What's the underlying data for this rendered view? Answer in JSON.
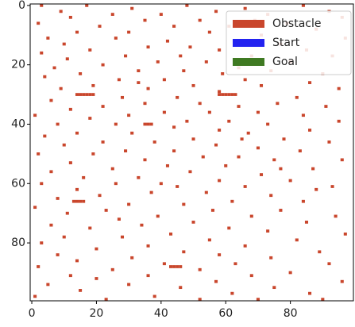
{
  "chart_data": {
    "type": "grid",
    "xlim": [
      -0.5,
      99.5
    ],
    "ylim": [
      99.5,
      -0.5
    ],
    "xticks": [
      0,
      20,
      40,
      60,
      80
    ],
    "yticks": [
      0,
      20,
      40,
      60,
      80
    ],
    "legend_loc": "upper right",
    "series": [
      {
        "name": "Obstacle",
        "color": "#c9462c"
      },
      {
        "name": "Start",
        "color": "#2323f0"
      },
      {
        "name": "Goal",
        "color": "#3f7a22"
      }
    ],
    "obstacles": [
      [
        3,
        0
      ],
      [
        17,
        0
      ],
      [
        31,
        1
      ],
      [
        48,
        0
      ],
      [
        66,
        1
      ],
      [
        84,
        0
      ],
      [
        92,
        2
      ],
      [
        9,
        2
      ],
      [
        25,
        3
      ],
      [
        40,
        3
      ],
      [
        57,
        2
      ],
      [
        73,
        3
      ],
      [
        12,
        4
      ],
      [
        35,
        5
      ],
      [
        52,
        5
      ],
      [
        69,
        5
      ],
      [
        96,
        4
      ],
      [
        2,
        6
      ],
      [
        21,
        7
      ],
      [
        44,
        7
      ],
      [
        61,
        7
      ],
      [
        79,
        6
      ],
      [
        88,
        8
      ],
      [
        14,
        9
      ],
      [
        30,
        9
      ],
      [
        55,
        9
      ],
      [
        71,
        10
      ],
      [
        5,
        11
      ],
      [
        26,
        11
      ],
      [
        42,
        12
      ],
      [
        63,
        12
      ],
      [
        97,
        11
      ],
      [
        10,
        13
      ],
      [
        36,
        14
      ],
      [
        49,
        14
      ],
      [
        77,
        13
      ],
      [
        18,
        15
      ],
      [
        58,
        15
      ],
      [
        85,
        15
      ],
      [
        3,
        16
      ],
      [
        29,
        17
      ],
      [
        46,
        17
      ],
      [
        68,
        17
      ],
      [
        93,
        17
      ],
      [
        11,
        18
      ],
      [
        39,
        19
      ],
      [
        54,
        19
      ],
      [
        80,
        19
      ],
      [
        22,
        20
      ],
      [
        64,
        21
      ],
      [
        7,
        21
      ],
      [
        33,
        22
      ],
      [
        47,
        22
      ],
      [
        74,
        22
      ],
      [
        15,
        23
      ],
      [
        59,
        23
      ],
      [
        90,
        23
      ],
      [
        4,
        24
      ],
      [
        27,
        25
      ],
      [
        41,
        25
      ],
      [
        66,
        25
      ],
      [
        86,
        26
      ],
      [
        19,
        27
      ],
      [
        50,
        27
      ],
      [
        71,
        27
      ],
      [
        9,
        28
      ],
      [
        36,
        28
      ],
      [
        58,
        29
      ],
      [
        95,
        28
      ],
      [
        14,
        30
      ],
      [
        15,
        30
      ],
      [
        16,
        30
      ],
      [
        17,
        30
      ],
      [
        18,
        30
      ],
      [
        19,
        30
      ],
      [
        58,
        30
      ],
      [
        59,
        30
      ],
      [
        60,
        30
      ],
      [
        61,
        30
      ],
      [
        62,
        30
      ],
      [
        63,
        30
      ],
      [
        28,
        31
      ],
      [
        45,
        31
      ],
      [
        82,
        31
      ],
      [
        6,
        32
      ],
      [
        35,
        33
      ],
      [
        52,
        33
      ],
      [
        76,
        33
      ],
      [
        22,
        34
      ],
      [
        64,
        34
      ],
      [
        91,
        34
      ],
      [
        12,
        35
      ],
      [
        41,
        36
      ],
      [
        55,
        36
      ],
      [
        70,
        36
      ],
      [
        1,
        37
      ],
      [
        30,
        37
      ],
      [
        84,
        37
      ],
      [
        18,
        38
      ],
      [
        48,
        39
      ],
      [
        61,
        39
      ],
      [
        95,
        39
      ],
      [
        8,
        40
      ],
      [
        26,
        40
      ],
      [
        35,
        40
      ],
      [
        36,
        40
      ],
      [
        37,
        40
      ],
      [
        73,
        40
      ],
      [
        44,
        41
      ],
      [
        58,
        42
      ],
      [
        86,
        42
      ],
      [
        14,
        43
      ],
      [
        31,
        43
      ],
      [
        67,
        43
      ],
      [
        4,
        44
      ],
      [
        50,
        45
      ],
      [
        78,
        45
      ],
      [
        22,
        46
      ],
      [
        38,
        46
      ],
      [
        92,
        46
      ],
      [
        10,
        47
      ],
      [
        57,
        47
      ],
      [
        70,
        48
      ],
      [
        29,
        49
      ],
      [
        44,
        49
      ],
      [
        83,
        49
      ],
      [
        2,
        50
      ],
      [
        19,
        50
      ],
      [
        53,
        51
      ],
      [
        64,
        51
      ],
      [
        35,
        52
      ],
      [
        75,
        52
      ],
      [
        96,
        52
      ],
      [
        12,
        53
      ],
      [
        42,
        54
      ],
      [
        60,
        54
      ],
      [
        25,
        55
      ],
      [
        87,
        55
      ],
      [
        6,
        56
      ],
      [
        49,
        56
      ],
      [
        71,
        57
      ],
      [
        33,
        58
      ],
      [
        16,
        58
      ],
      [
        58,
        59
      ],
      [
        80,
        59
      ],
      [
        3,
        60
      ],
      [
        26,
        60
      ],
      [
        45,
        61
      ],
      [
        66,
        61
      ],
      [
        93,
        61
      ],
      [
        14,
        62
      ],
      [
        37,
        63
      ],
      [
        54,
        63
      ],
      [
        74,
        64
      ],
      [
        21,
        64
      ],
      [
        8,
        65
      ],
      [
        13,
        66
      ],
      [
        14,
        66
      ],
      [
        15,
        66
      ],
      [
        16,
        66
      ],
      [
        62,
        66
      ],
      [
        84,
        66
      ],
      [
        30,
        67
      ],
      [
        47,
        67
      ],
      [
        1,
        68
      ],
      [
        23,
        69
      ],
      [
        56,
        69
      ],
      [
        77,
        69
      ],
      [
        11,
        70
      ],
      [
        39,
        71
      ],
      [
        68,
        71
      ],
      [
        94,
        71
      ],
      [
        27,
        72
      ],
      [
        50,
        73
      ],
      [
        85,
        73
      ],
      [
        6,
        74
      ],
      [
        34,
        74
      ],
      [
        61,
        75
      ],
      [
        18,
        75
      ],
      [
        73,
        76
      ],
      [
        43,
        77
      ],
      [
        97,
        77
      ],
      [
        10,
        78
      ],
      [
        28,
        78
      ],
      [
        55,
        79
      ],
      [
        82,
        79
      ],
      [
        3,
        80
      ],
      [
        36,
        81
      ],
      [
        66,
        81
      ],
      [
        20,
        82
      ],
      [
        47,
        83
      ],
      [
        89,
        83
      ],
      [
        8,
        84
      ],
      [
        58,
        84
      ],
      [
        31,
        85
      ],
      [
        74,
        85
      ],
      [
        14,
        86
      ],
      [
        41,
        87
      ],
      [
        43,
        88
      ],
      [
        44,
        88
      ],
      [
        45,
        88
      ],
      [
        46,
        88
      ],
      [
        63,
        87
      ],
      [
        92,
        87
      ],
      [
        2,
        88
      ],
      [
        25,
        89
      ],
      [
        52,
        89
      ],
      [
        80,
        90
      ],
      [
        12,
        91
      ],
      [
        36,
        91
      ],
      [
        68,
        91
      ],
      [
        20,
        92
      ],
      [
        57,
        93
      ],
      [
        96,
        93
      ],
      [
        5,
        94
      ],
      [
        30,
        94
      ],
      [
        46,
        95
      ],
      [
        75,
        95
      ],
      [
        15,
        96
      ],
      [
        62,
        97
      ],
      [
        86,
        97
      ],
      [
        1,
        98
      ],
      [
        38,
        98
      ],
      [
        52,
        99
      ],
      [
        90,
        99
      ],
      [
        23,
        99
      ],
      [
        70,
        99
      ],
      [
        33,
        26
      ],
      [
        77,
        55
      ],
      [
        40,
        60
      ],
      [
        65,
        45
      ],
      [
        88,
        62
      ]
    ]
  }
}
